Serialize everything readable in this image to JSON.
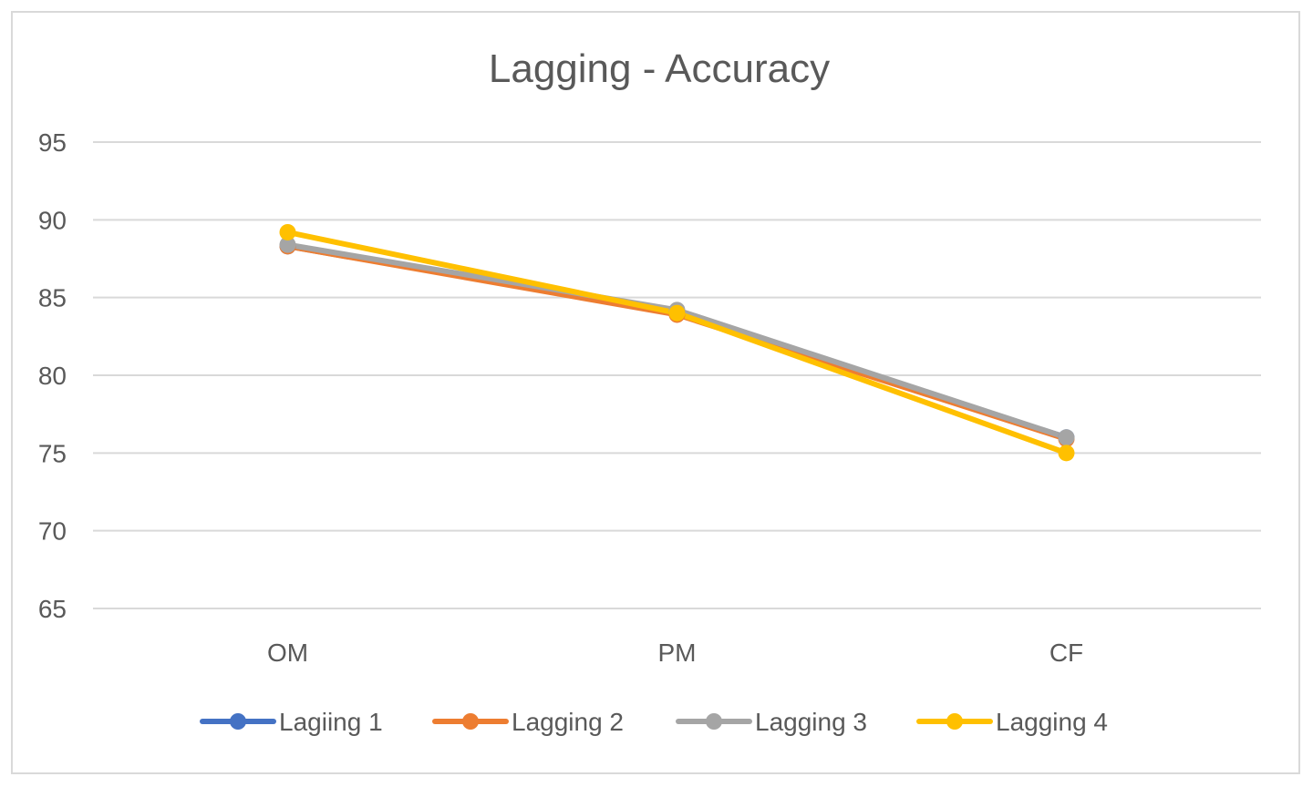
{
  "chart_data": {
    "type": "line",
    "title": "Lagging - Accuracy",
    "xlabel": "",
    "ylabel": "",
    "categories": [
      "OM",
      "PM",
      "CF"
    ],
    "ylim": [
      65,
      95
    ],
    "yticks": [
      65,
      70,
      75,
      80,
      85,
      90,
      95
    ],
    "grid": true,
    "legend_position": "bottom",
    "series": [
      {
        "name": "Lagiing 1",
        "color": "#4472C4",
        "values": [
          88.3,
          84.0,
          76.0
        ]
      },
      {
        "name": "Lagging 2",
        "color": "#ED7D31",
        "values": [
          88.3,
          83.9,
          75.9
        ]
      },
      {
        "name": "Lagging 3",
        "color": "#A5A5A5",
        "values": [
          88.4,
          84.2,
          76.0
        ]
      },
      {
        "name": "Lagging 4",
        "color": "#FFC000",
        "values": [
          89.2,
          84.0,
          75.0
        ]
      }
    ]
  }
}
